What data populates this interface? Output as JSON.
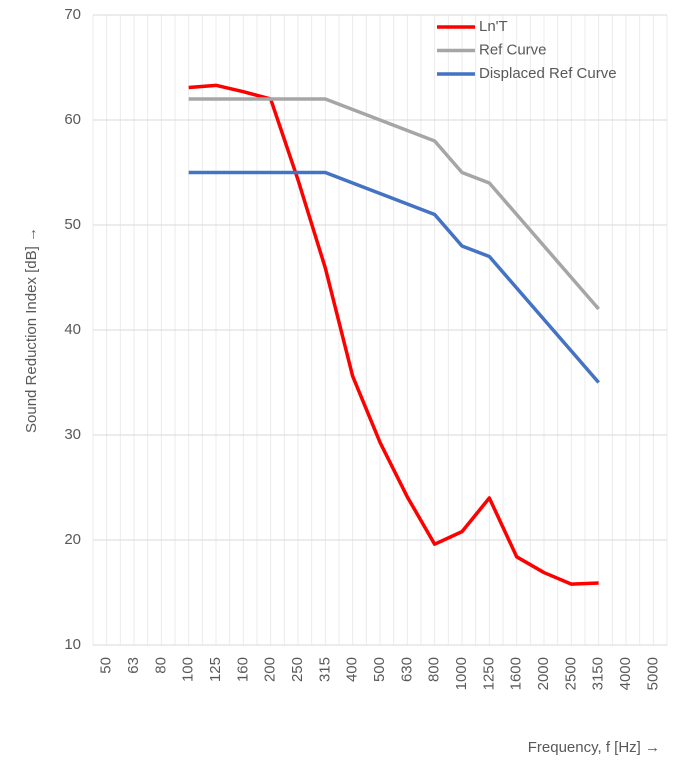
{
  "chart_data": {
    "type": "line",
    "x_label": "Frequency, f [Hz] →",
    "y_label": "Sound Reduction Index [dB] →",
    "categories": [
      "50",
      "63",
      "80",
      "100",
      "125",
      "160",
      "200",
      "250",
      "315",
      "400",
      "500",
      "630",
      "800",
      "1000",
      "1250",
      "1600",
      "2000",
      "2500",
      "3150",
      "4000",
      "5000"
    ],
    "series": [
      {
        "name": "Ln'T",
        "color": "#ff0000",
        "values": [
          null,
          null,
          null,
          63.1,
          63.3,
          62.7,
          62.0,
          54.3,
          45.9,
          35.6,
          29.3,
          24.1,
          19.6,
          20.8,
          24.0,
          18.4,
          16.9,
          15.8,
          15.9,
          null,
          null
        ]
      },
      {
        "name": "Ref Curve",
        "color": "#a6a6a6",
        "values": [
          null,
          null,
          null,
          62,
          62,
          62,
          62,
          62,
          62,
          61,
          60,
          59,
          58,
          55,
          54,
          51,
          48,
          45,
          42,
          null,
          null
        ]
      },
      {
        "name": "Displaced Ref Curve",
        "color": "#4472c4",
        "values": [
          null,
          null,
          null,
          55,
          55,
          55,
          55,
          55,
          55,
          54,
          53,
          52,
          51,
          48,
          47,
          44,
          41,
          38,
          35,
          null,
          null
        ]
      }
    ],
    "ylim": [
      10,
      70
    ],
    "yticks": [
      10,
      20,
      30,
      40,
      50,
      60,
      70
    ],
    "grid": true,
    "legend": "top-right"
  }
}
